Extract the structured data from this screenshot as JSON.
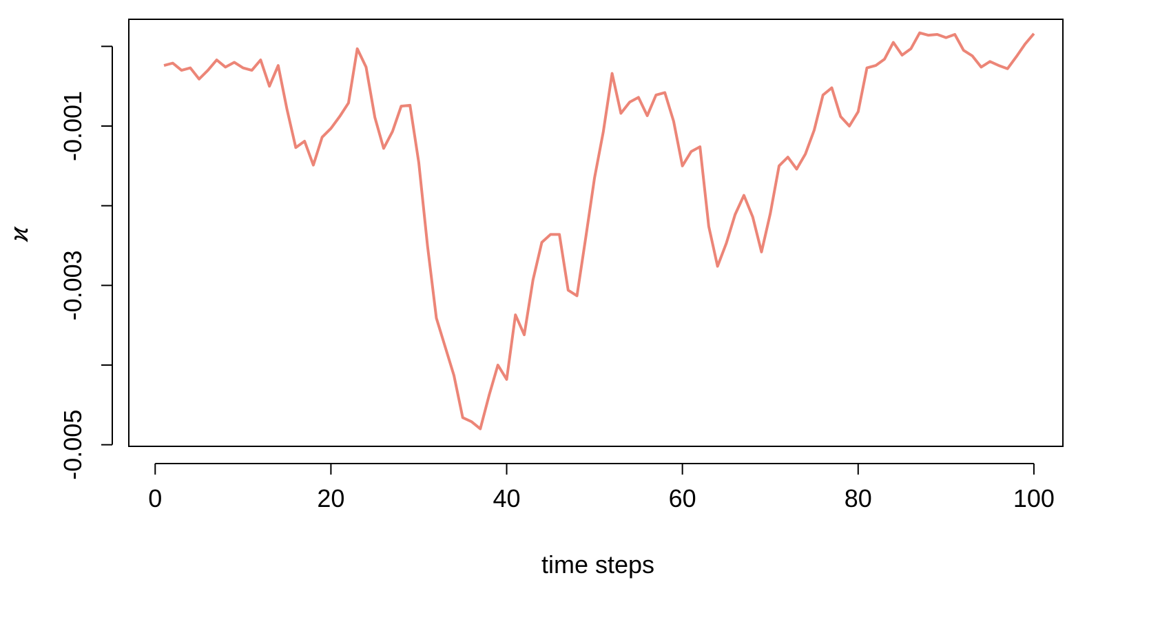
{
  "chart_data": {
    "type": "line",
    "xlabel": "time steps",
    "ylabel": "ϰ",
    "x": [
      1,
      2,
      3,
      4,
      5,
      6,
      7,
      8,
      9,
      10,
      11,
      12,
      13,
      14,
      15,
      16,
      17,
      18,
      19,
      20,
      21,
      22,
      23,
      24,
      25,
      26,
      27,
      28,
      29,
      30,
      31,
      32,
      33,
      34,
      35,
      36,
      37,
      38,
      39,
      40,
      41,
      42,
      43,
      44,
      45,
      46,
      47,
      48,
      49,
      50,
      51,
      52,
      53,
      54,
      55,
      56,
      57,
      58,
      59,
      60,
      61,
      62,
      63,
      64,
      65,
      66,
      67,
      68,
      69,
      70,
      71,
      72,
      73,
      74,
      75,
      76,
      77,
      78,
      79,
      80,
      81,
      82,
      83,
      84,
      85,
      86,
      87,
      88,
      89,
      90,
      91,
      92,
      93,
      94,
      95,
      96,
      97,
      98,
      99,
      100
    ],
    "series": [
      {
        "color": "#ec8577",
        "values": [
          -0.00024,
          -0.00021,
          -0.0003,
          -0.00027,
          -0.00041,
          -0.0003,
          -0.00017,
          -0.00026,
          -0.0002,
          -0.00027,
          -0.0003,
          -0.00017,
          -0.0005,
          -0.00024,
          -0.00079,
          -0.00127,
          -0.00119,
          -0.00149,
          -0.00114,
          -0.00103,
          -0.00088,
          -0.00071,
          -3e-05,
          -0.00026,
          -0.00089,
          -0.00128,
          -0.00107,
          -0.00075,
          -0.00074,
          -0.00146,
          -0.00251,
          -0.00341,
          -0.00377,
          -0.00413,
          -0.00466,
          -0.00471,
          -0.0048,
          -0.00438,
          -0.004,
          -0.00418,
          -0.00337,
          -0.00362,
          -0.00293,
          -0.00246,
          -0.00236,
          -0.00236,
          -0.00306,
          -0.00313,
          -0.0024,
          -0.00165,
          -0.00107,
          -0.00034,
          -0.00084,
          -0.0007,
          -0.00064,
          -0.00087,
          -0.00061,
          -0.00058,
          -0.00094,
          -0.0015,
          -0.00132,
          -0.00126,
          -0.00226,
          -0.00276,
          -0.00247,
          -0.00211,
          -0.00187,
          -0.00214,
          -0.00258,
          -0.0021,
          -0.0015,
          -0.00139,
          -0.00154,
          -0.00135,
          -0.00105,
          -0.00061,
          -0.00052,
          -0.00088,
          -0.001,
          -0.00082,
          -0.00027,
          -0.00024,
          -0.00016,
          5e-05,
          -0.00011,
          -3e-05,
          0.00017,
          0.00014,
          0.00015,
          0.00011,
          0.00015,
          -5e-05,
          -0.00012,
          -0.00026,
          -0.00019,
          -0.00024,
          -0.00028,
          -0.00013,
          3e-05,
          0.00016
        ]
      }
    ],
    "xlim": [
      -3,
      103.3
    ],
    "ylim": [
      -0.00502,
      0.00034
    ],
    "xticks": [
      0,
      20,
      40,
      60,
      80,
      100
    ],
    "yticks": [
      {
        "value": 0,
        "label": null
      },
      -0.001,
      {
        "value": -0.002,
        "label": null
      },
      -0.003,
      {
        "value": -0.004,
        "label": null
      },
      -0.005
    ]
  }
}
